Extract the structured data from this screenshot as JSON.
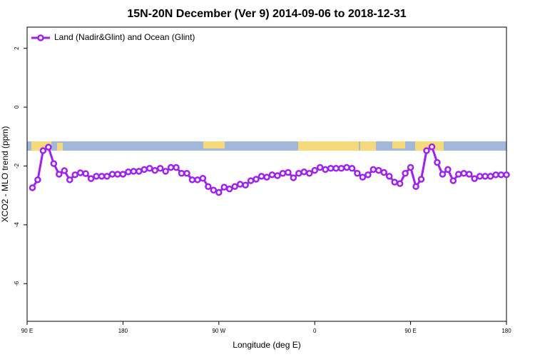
{
  "chart_data": {
    "type": "line",
    "title": "15N-20N December (Ver 9)   2014-09-06 to 2018-12-31",
    "x_label": "Longitude (deg E)",
    "y_label": "XCO2 - MLO trend (ppm)",
    "xlim": [
      90,
      540
    ],
    "xticks": [
      {
        "value": 90,
        "label": "90 E"
      },
      180,
      {
        "value": 270,
        "label": "90 W"
      },
      {
        "value": 360,
        "label": "0"
      },
      {
        "value": 450,
        "label": "90 E"
      },
      {
        "value": 540,
        "label": "180"
      }
    ],
    "ylim": [
      -7.28,
      2.72
    ],
    "yticks": [
      2,
      0,
      -2,
      -4,
      -6
    ],
    "legend_position": "top-left",
    "x": [
      95,
      100,
      105,
      110,
      115,
      120,
      125,
      130,
      135,
      140,
      145,
      150,
      155,
      160,
      165,
      170,
      175,
      180,
      185,
      190,
      195,
      200,
      205,
      210,
      215,
      220,
      225,
      230,
      235,
      240,
      245,
      250,
      255,
      260,
      265,
      270,
      275,
      280,
      285,
      290,
      295,
      300,
      305,
      310,
      315,
      320,
      325,
      330,
      335,
      340,
      345,
      350,
      355,
      360,
      365,
      370,
      375,
      380,
      385,
      390,
      395,
      400,
      405,
      410,
      415,
      420,
      425,
      430,
      435,
      440,
      445,
      450,
      455,
      460,
      465,
      470,
      475,
      480,
      485,
      490,
      495,
      500,
      505,
      510,
      515,
      520,
      525,
      530,
      535,
      540
    ],
    "series": [
      {
        "name": "Land (Nadir&Glint) and Ocean (Glint)",
        "color": "#a020f0",
        "values": [
          -2.74,
          -2.47,
          -1.48,
          -1.36,
          -1.92,
          -2.28,
          -2.16,
          -2.47,
          -2.3,
          -2.23,
          -2.26,
          -2.43,
          -2.35,
          -2.35,
          -2.35,
          -2.28,
          -2.28,
          -2.28,
          -2.2,
          -2.18,
          -2.18,
          -2.12,
          -2.08,
          -2.15,
          -2.08,
          -2.18,
          -2.05,
          -2.05,
          -2.25,
          -2.25,
          -2.47,
          -2.47,
          -2.42,
          -2.7,
          -2.82,
          -2.9,
          -2.72,
          -2.78,
          -2.7,
          -2.62,
          -2.65,
          -2.5,
          -2.45,
          -2.35,
          -2.38,
          -2.3,
          -2.33,
          -2.25,
          -2.22,
          -2.4,
          -2.25,
          -2.2,
          -2.25,
          -2.15,
          -2.05,
          -2.12,
          -2.08,
          -2.08,
          -2.08,
          -2.05,
          -2.08,
          -2.25,
          -2.38,
          -2.3,
          -2.12,
          -2.15,
          -2.22,
          -2.35,
          -2.55,
          -2.6,
          -2.25,
          -2.05,
          -2.7,
          -2.45,
          -1.48,
          -1.35,
          -1.88,
          -2.28,
          -2.12,
          -2.5,
          -2.28,
          -2.25,
          -2.28,
          -2.43,
          -2.35,
          -2.35,
          -2.35,
          -2.3,
          -2.3,
          -2.3
        ]
      }
    ]
  }
}
